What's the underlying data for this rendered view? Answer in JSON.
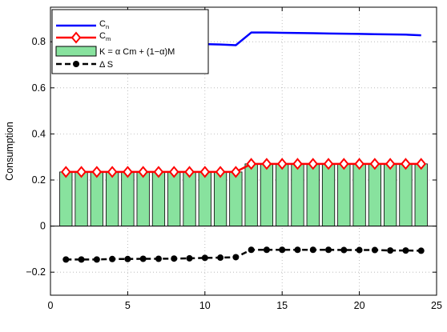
{
  "chart_data": {
    "type": "bar",
    "xlim": [
      0,
      25
    ],
    "ylim": [
      -0.3,
      0.95
    ],
    "xticks": [
      0,
      5,
      10,
      15,
      20,
      25
    ],
    "yticks": [
      -0.2,
      0,
      0.2,
      0.4,
      0.6,
      0.8
    ],
    "xtick_labels": [
      "0",
      "5",
      "10",
      "15",
      "20",
      "25"
    ],
    "ytick_labels": [
      "−0.2",
      "0",
      "0.2",
      "0.4",
      "0.6",
      "0.8"
    ],
    "ylabel": "Consumption",
    "xlabel": "",
    "grid": true,
    "legend_position": "top-left",
    "x": [
      1,
      2,
      3,
      4,
      5,
      6,
      7,
      8,
      9,
      10,
      11,
      12,
      13,
      14,
      15,
      16,
      17,
      18,
      19,
      20,
      21,
      22,
      23,
      24
    ],
    "series": [
      {
        "kind": "line",
        "name_main": "C",
        "name_sub": "n",
        "color": "#0000ff",
        "values": [
          0.795,
          0.795,
          0.795,
          0.795,
          0.795,
          0.795,
          0.795,
          0.794,
          0.793,
          0.79,
          0.788,
          0.785,
          0.84,
          0.84,
          0.839,
          0.838,
          0.837,
          0.836,
          0.835,
          0.834,
          0.833,
          0.832,
          0.831,
          0.828
        ]
      },
      {
        "kind": "line-diamond",
        "name_main": "C",
        "name_sub": "m",
        "color": "#ff0000",
        "values": [
          0.235,
          0.235,
          0.235,
          0.235,
          0.235,
          0.235,
          0.235,
          0.235,
          0.235,
          0.235,
          0.235,
          0.235,
          0.27,
          0.27,
          0.27,
          0.27,
          0.27,
          0.27,
          0.27,
          0.27,
          0.27,
          0.27,
          0.27,
          0.27
        ]
      },
      {
        "kind": "bar",
        "name_main": "K = α Cm + (1−α)M",
        "color": "#88e29e",
        "values": [
          0.235,
          0.235,
          0.235,
          0.235,
          0.235,
          0.235,
          0.235,
          0.235,
          0.235,
          0.235,
          0.235,
          0.235,
          0.27,
          0.27,
          0.27,
          0.27,
          0.27,
          0.27,
          0.27,
          0.27,
          0.27,
          0.27,
          0.27,
          0.27
        ]
      },
      {
        "kind": "dashed-dot",
        "name_main": "Δ S",
        "color": "#000000",
        "values": [
          -0.145,
          -0.145,
          -0.145,
          -0.143,
          -0.143,
          -0.142,
          -0.142,
          -0.141,
          -0.14,
          -0.138,
          -0.137,
          -0.135,
          -0.103,
          -0.103,
          -0.103,
          -0.103,
          -0.103,
          -0.103,
          -0.104,
          -0.104,
          -0.104,
          -0.106,
          -0.106,
          -0.107
        ]
      }
    ]
  }
}
